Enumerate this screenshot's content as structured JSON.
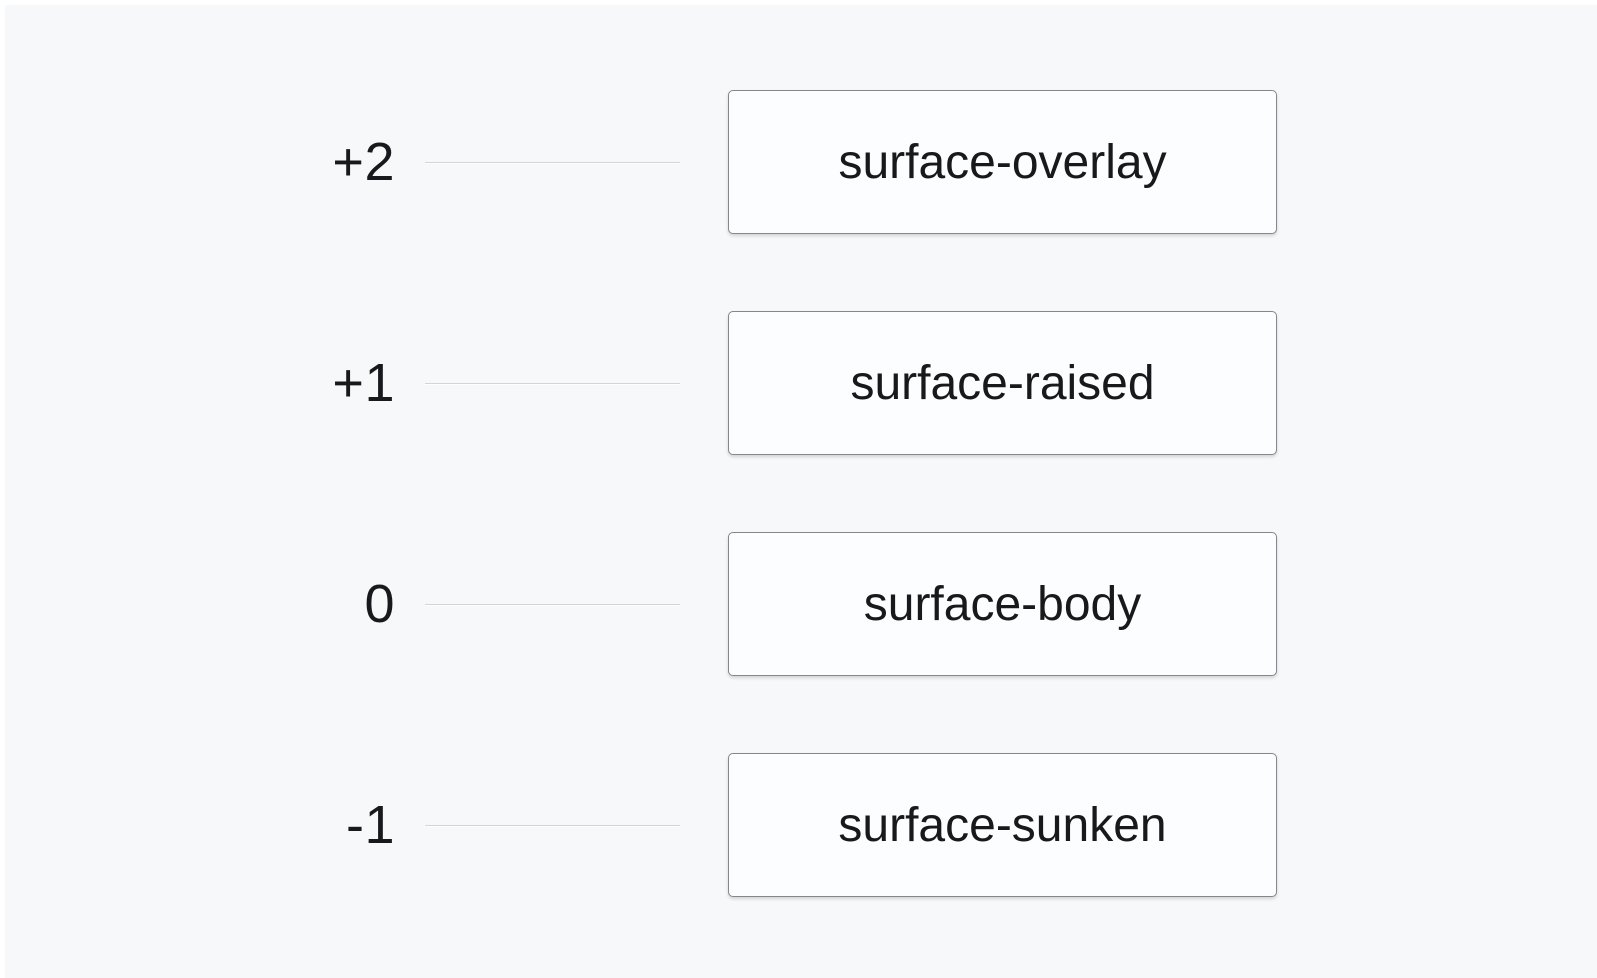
{
  "diagram": {
    "rows": [
      {
        "level": "+2",
        "surface": "surface-overlay"
      },
      {
        "level": "+1",
        "surface": "surface-raised"
      },
      {
        "level": "0",
        "surface": "surface-body"
      },
      {
        "level": "-1",
        "surface": "surface-sunken"
      }
    ],
    "colors": {
      "page_background": "#f7f8fa",
      "page_edge": "#ffffff",
      "box_background": "#fcfdfe",
      "box_border": "#84878c",
      "connector_line": "#d2d4d8",
      "text": "#17191d"
    }
  }
}
